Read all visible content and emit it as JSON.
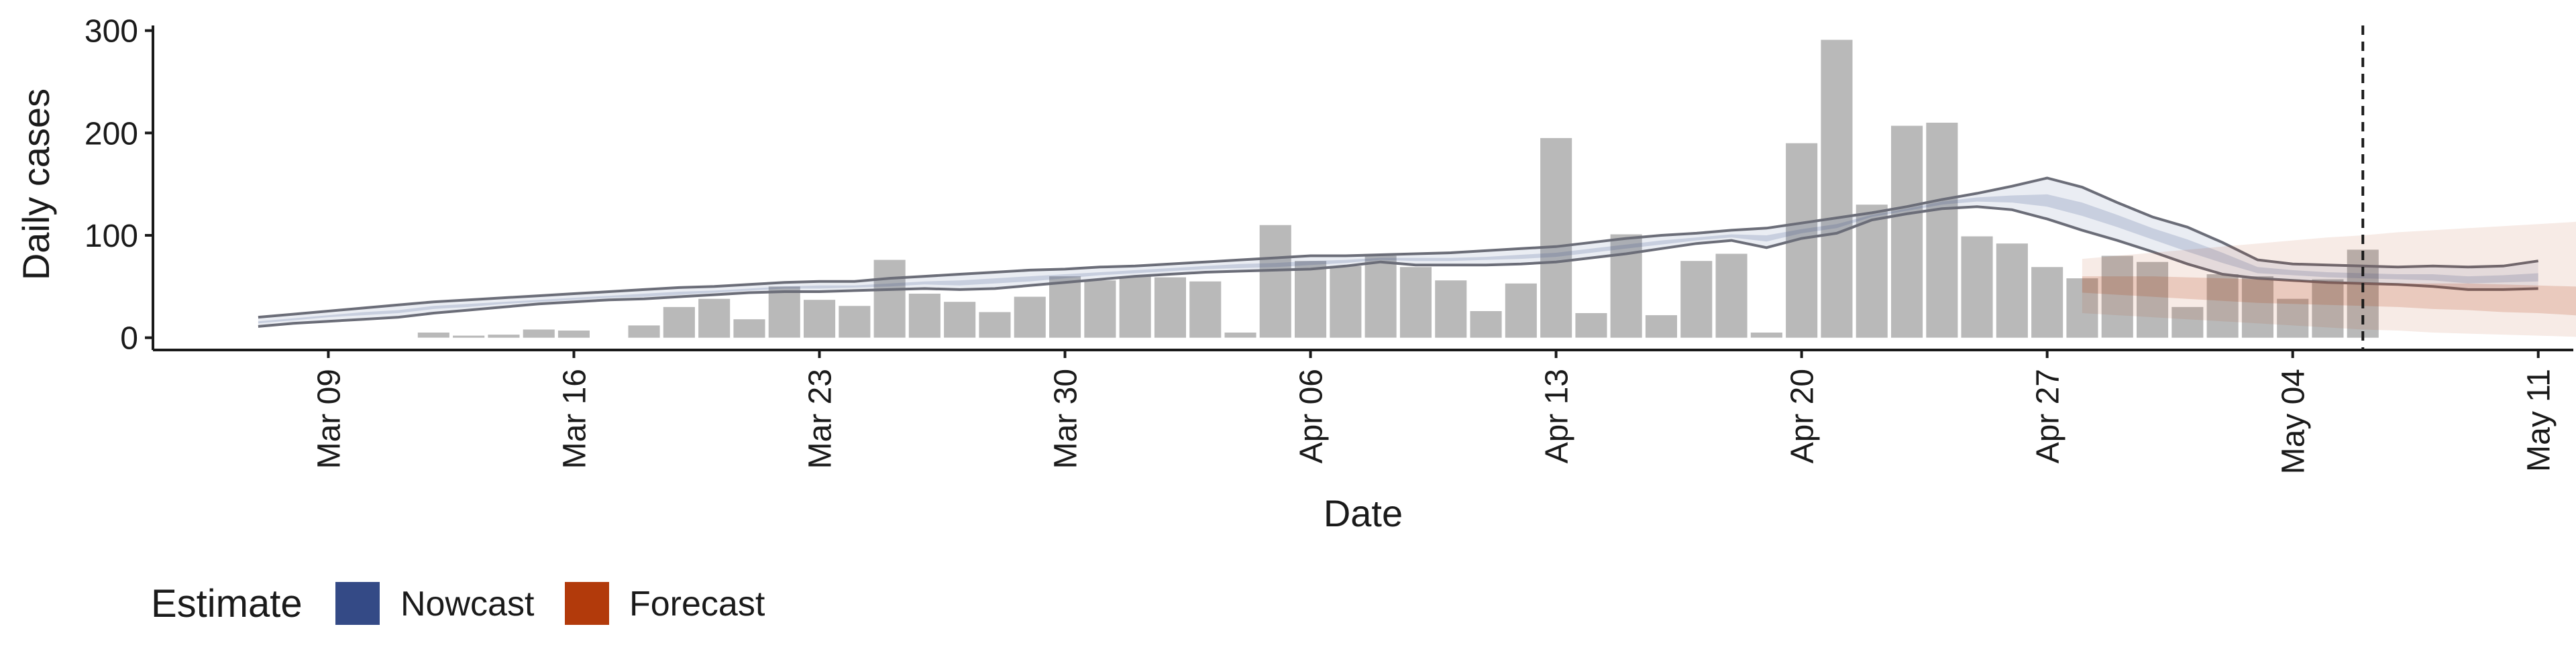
{
  "chart_data": {
    "type": "bar",
    "xlabel": "Date",
    "ylabel": "Daily cases",
    "ylim": [
      -12,
      305
    ],
    "yticks": [
      "0",
      "100",
      "200",
      "300"
    ],
    "ytick_values": [
      0,
      100,
      200,
      300
    ],
    "xlim": [
      "2020-03-04",
      "2020-05-12"
    ],
    "xticks": [
      "Mar 09",
      "Mar 16",
      "Mar 23",
      "Mar 30",
      "Apr 06",
      "Apr 13",
      "Apr 20",
      "Apr 27",
      "May 04",
      "May 11"
    ],
    "xtick_dates": [
      "2020-03-09",
      "2020-03-16",
      "2020-03-23",
      "2020-03-30",
      "2020-04-06",
      "2020-04-13",
      "2020-04-20",
      "2020-04-27",
      "2020-05-04",
      "2020-05-11"
    ],
    "vline_date": "2020-05-06",
    "bars": {
      "start_date": "2020-03-12",
      "values": [
        5,
        2,
        3,
        8,
        7,
        0,
        12,
        30,
        38,
        18,
        50,
        37,
        31,
        76,
        43,
        35,
        25,
        40,
        60,
        56,
        60,
        59,
        55,
        5,
        110,
        75,
        70,
        80,
        69,
        56,
        26,
        53,
        195,
        24,
        101,
        22,
        75,
        82,
        5,
        190,
        291,
        130,
        207,
        210,
        99,
        92,
        69,
        58,
        80,
        74,
        30,
        62,
        60,
        38,
        57,
        86
      ]
    },
    "series": [
      {
        "name": "Nowcast",
        "color": "#344a86",
        "start_date": "2020-03-07",
        "upper": [
          20,
          23,
          26,
          29,
          32,
          35,
          37,
          39,
          41,
          43,
          45,
          47,
          49,
          50,
          52,
          54,
          55,
          55,
          58,
          60,
          62,
          64,
          66,
          67,
          69,
          70,
          72,
          74,
          76,
          78,
          80,
          80,
          81,
          82,
          83,
          85,
          87,
          89,
          93,
          97,
          100,
          102,
          105,
          107,
          112,
          117,
          122,
          128,
          135,
          141,
          148,
          156,
          147,
          132,
          118,
          108,
          93,
          76,
          72,
          71,
          70,
          69,
          70,
          69,
          70,
          75
        ],
        "lower": [
          11,
          14,
          16,
          18,
          20,
          24,
          27,
          30,
          33,
          35,
          37,
          38,
          40,
          42,
          44,
          45,
          45,
          46,
          47,
          48,
          47,
          48,
          51,
          54,
          57,
          60,
          62,
          64,
          65,
          66,
          67,
          70,
          74,
          71,
          71,
          71,
          72,
          74,
          78,
          82,
          87,
          92,
          95,
          88,
          97,
          102,
          115,
          121,
          126,
          128,
          125,
          116,
          105,
          95,
          84,
          72,
          62,
          58,
          56,
          54,
          53,
          52,
          50,
          47,
          47,
          48
        ],
        "inner_upper": [
          16,
          19,
          22,
          25,
          27,
          31,
          33,
          35,
          37,
          39,
          41,
          43,
          45,
          46,
          48,
          50,
          51,
          51,
          53,
          55,
          56,
          58,
          60,
          62,
          64,
          66,
          68,
          70,
          72,
          73,
          75,
          76,
          78,
          78,
          78,
          79,
          81,
          83,
          87,
          91,
          95,
          98,
          101,
          100,
          106,
          111,
          120,
          126,
          133,
          137,
          139,
          140,
          132,
          120,
          107,
          96,
          83,
          69,
          66,
          64,
          63,
          62,
          62,
          60,
          61,
          63
        ],
        "inner_lower": [
          14,
          17,
          20,
          22,
          24,
          28,
          30,
          33,
          35,
          37,
          39,
          40,
          42,
          44,
          46,
          48,
          48,
          49,
          50,
          52,
          51,
          53,
          55,
          58,
          61,
          63,
          65,
          67,
          68,
          69,
          71,
          73,
          76,
          75,
          75,
          76,
          77,
          79,
          83,
          87,
          91,
          95,
          98,
          94,
          102,
          107,
          118,
          124,
          130,
          133,
          132,
          128,
          119,
          108,
          96,
          84,
          73,
          63,
          61,
          59,
          58,
          57,
          56,
          53,
          54,
          55
        ]
      },
      {
        "name": "Forecast",
        "color": "#b23a0b",
        "start_date": "2020-04-28",
        "upper": [
          77,
          80,
          83,
          86,
          89,
          92,
          95,
          98,
          100,
          103,
          105,
          107,
          109,
          111,
          113,
          116,
          119,
          122,
          124,
          126,
          128
        ],
        "lower": [
          24,
          22,
          20,
          18,
          16,
          14,
          12,
          10,
          8,
          7,
          5,
          4,
          3,
          2,
          1,
          0,
          0,
          0,
          0,
          0,
          0
        ],
        "inner_upper": [
          60,
          60,
          60,
          59,
          58,
          57,
          56,
          55,
          54,
          53,
          53,
          53,
          52,
          51,
          50,
          49,
          47,
          45,
          42,
          39,
          36
        ],
        "inner_lower": [
          44,
          42,
          40,
          38,
          36,
          34,
          33,
          32,
          31,
          30,
          28,
          27,
          25,
          24,
          22,
          20,
          17,
          13,
          8,
          3,
          0
        ]
      }
    ],
    "legend": {
      "title": "Estimate",
      "position": "bottom-left",
      "entries": [
        {
          "label": "Nowcast",
          "color": "#344a86"
        },
        {
          "label": "Forecast",
          "color": "#b23a0b"
        }
      ]
    },
    "grid": false
  }
}
